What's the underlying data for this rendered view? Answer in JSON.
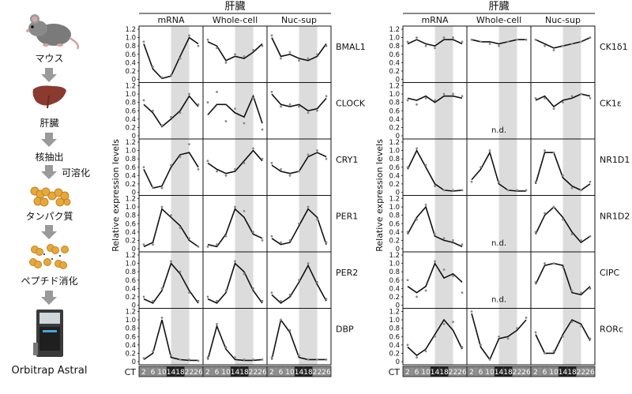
{
  "workflow": {
    "steps": [
      {
        "label": "マウス",
        "icon": "mouse-icon"
      },
      {
        "label": "肝臓",
        "icon": "liver-icon"
      },
      {
        "label": "核抽出",
        "icon": ""
      },
      {
        "label": "可溶化",
        "icon": ""
      },
      {
        "label": "タンパク質",
        "icon": "protein-icon"
      },
      {
        "label": "ペプチド消化",
        "icon": "peptide-icon"
      },
      {
        "label": "Orbitrap Astral",
        "icon": "mass-spectrometer-icon"
      }
    ]
  },
  "colors": {
    "night_shade": "#dcdcdc",
    "line": "#111111",
    "dots": "#888888",
    "ct_dark": "#222222",
    "ct_light": "#8a8a8a"
  },
  "chart_data": [
    {
      "type": "line",
      "panel_group": "left",
      "title": "肝臓",
      "ylabel": "Relative expression levels",
      "ct_label": "CT",
      "x": [
        2,
        6,
        10,
        14,
        18,
        22,
        26
      ],
      "x_tick_labels": [
        "2",
        "6",
        "10",
        "14",
        "18",
        "22",
        "26"
      ],
      "night_range": [
        14,
        22
      ],
      "ylim": [
        0,
        1.2
      ],
      "y_ticks": [
        "0",
        "0.2",
        "0.4",
        "0.6",
        "0.8",
        "1.0",
        "1.2"
      ],
      "columns": [
        "mRNA",
        "Whole-cell",
        "Nuc-sup"
      ],
      "rows": [
        {
          "gene": "BMAL1",
          "panels": [
            {
              "values": [
                0.85,
                0.25,
                0.02,
                0.08,
                0.55,
                1.0,
                0.85
              ],
              "dots": [
                0.9,
                0.3,
                0.05,
                0.1,
                0.5,
                1.05,
                0.8
              ]
            },
            {
              "values": [
                0.9,
                0.8,
                0.45,
                0.55,
                0.5,
                0.65,
                0.85
              ],
              "dots": [
                0.95,
                0.75,
                0.4,
                0.6,
                0.55,
                0.7,
                0.8
              ]
            },
            {
              "values": [
                1.0,
                0.55,
                0.6,
                0.5,
                0.45,
                0.55,
                0.85
              ],
              "dots": [
                1.05,
                0.5,
                0.65,
                0.45,
                0.5,
                0.6,
                0.8
              ]
            }
          ]
        },
        {
          "gene": "CLOCK",
          "panels": [
            {
              "values": [
                0.75,
                0.55,
                0.22,
                0.4,
                0.6,
                0.95,
                0.7
              ],
              "dots": [
                0.85,
                0.6,
                0.25,
                0.45,
                0.55,
                1.0,
                0.75
              ]
            },
            {
              "values": [
                0.5,
                0.75,
                0.75,
                0.55,
                0.45,
                0.95,
                0.3
              ],
              "dots": [
                0.8,
                1.05,
                0.35,
                0.65,
                0.3,
                0.9,
                0.15
              ]
            },
            {
              "values": [
                1.0,
                0.75,
                0.7,
                0.75,
                0.6,
                0.65,
                0.9
              ],
              "dots": [
                1.05,
                0.7,
                0.75,
                0.7,
                0.55,
                0.6,
                0.95
              ]
            }
          ]
        },
        {
          "gene": "CRY1",
          "panels": [
            {
              "values": [
                0.55,
                0.1,
                0.15,
                0.6,
                0.9,
                0.95,
                0.6
              ],
              "dots": [
                0.6,
                0.12,
                0.1,
                0.65,
                0.85,
                1.15,
                0.55
              ]
            },
            {
              "values": [
                0.7,
                0.55,
                0.45,
                0.5,
                0.75,
                1.0,
                0.75
              ],
              "dots": [
                0.75,
                0.5,
                0.4,
                0.55,
                0.7,
                1.05,
                0.8
              ]
            },
            {
              "values": [
                0.65,
                0.5,
                0.45,
                0.5,
                0.85,
                0.95,
                0.85
              ],
              "dots": [
                0.7,
                0.55,
                0.4,
                0.5,
                0.9,
                1.0,
                0.8
              ]
            }
          ]
        },
        {
          "gene": "PER1",
          "panels": [
            {
              "values": [
                0.05,
                0.15,
                0.95,
                0.75,
                0.55,
                0.2,
                0.05
              ],
              "dots": [
                0.1,
                0.1,
                1.0,
                0.8,
                0.5,
                0.25,
                0.05
              ]
            },
            {
              "values": [
                0.1,
                0.05,
                0.35,
                0.95,
                0.75,
                0.35,
                0.25
              ],
              "dots": [
                0.05,
                0.1,
                0.3,
                1.0,
                0.9,
                0.4,
                0.2
              ]
            },
            {
              "values": [
                0.25,
                0.1,
                0.15,
                0.55,
                0.95,
                0.75,
                0.1
              ],
              "dots": [
                0.3,
                0.15,
                0.2,
                0.6,
                1.0,
                0.7,
                0.15
              ]
            }
          ]
        },
        {
          "gene": "PER2",
          "panels": [
            {
              "values": [
                0.15,
                0.05,
                0.35,
                1.0,
                0.75,
                0.35,
                0.05
              ],
              "dots": [
                0.2,
                0.1,
                0.4,
                1.05,
                0.8,
                0.3,
                0.1
              ]
            },
            {
              "values": [
                0.15,
                0.05,
                0.3,
                1.0,
                0.8,
                0.35,
                0.05
              ],
              "dots": [
                0.2,
                0.1,
                0.35,
                1.05,
                0.75,
                0.4,
                0.1
              ]
            },
            {
              "values": [
                0.25,
                0.05,
                0.2,
                0.55,
                0.95,
                0.5,
                0.1
              ],
              "dots": [
                0.3,
                0.1,
                0.25,
                0.6,
                1.0,
                0.55,
                0.15
              ]
            }
          ]
        },
        {
          "gene": "DBP",
          "panels": [
            {
              "values": [
                0.05,
                0.2,
                1.0,
                0.1,
                0.05,
                0.03,
                0.03
              ],
              "dots": [
                0.08,
                0.25,
                1.05,
                0.15,
                0.05,
                0.05,
                0.02
              ]
            },
            {
              "values": [
                0.05,
                0.85,
                0.3,
                0.05,
                0.03,
                0.03,
                0.05
              ],
              "dots": [
                0.1,
                0.9,
                0.35,
                0.1,
                0.05,
                0.05,
                0.05
              ]
            },
            {
              "values": [
                0.05,
                1.0,
                0.7,
                0.1,
                0.05,
                0.05,
                0.05
              ],
              "dots": [
                0.1,
                1.0,
                0.75,
                0.15,
                0.05,
                0.05,
                0.05
              ]
            }
          ]
        }
      ]
    },
    {
      "type": "line",
      "panel_group": "right",
      "title": "肝臓",
      "ylabel": "Relative expression levels",
      "ct_label": "CT",
      "x": [
        2,
        6,
        10,
        14,
        18,
        22,
        26
      ],
      "x_tick_labels": [
        "2",
        "6",
        "10",
        "14",
        "18",
        "22",
        "26"
      ],
      "night_range": [
        14,
        22
      ],
      "ylim": [
        0,
        1.2
      ],
      "y_ticks": [
        "0",
        "0.2",
        "0.4",
        "0.6",
        "0.8",
        "1.0",
        "1.2"
      ],
      "columns": [
        "mRNA",
        "Whole-cell",
        "Nuc-sup"
      ],
      "nd_label": "n.d.",
      "rows": [
        {
          "gene": "CK1δ1",
          "panels": [
            {
              "values": [
                0.85,
                0.95,
                0.85,
                0.8,
                0.95,
                0.95,
                0.85
              ],
              "dots": [
                0.9,
                1.0,
                0.8,
                0.75,
                1.0,
                1.0,
                0.9
              ]
            },
            {
              "values": [
                0.95,
                0.9,
                0.9,
                0.85,
                0.9,
                0.95,
                0.95
              ],
              "dots": [
                0.95,
                0.9,
                0.85,
                0.8,
                0.9,
                0.95,
                0.95
              ]
            },
            {
              "values": [
                0.95,
                0.85,
                0.75,
                0.8,
                0.85,
                0.9,
                1.0
              ],
              "dots": [
                0.95,
                0.8,
                0.7,
                0.8,
                0.85,
                0.9,
                1.0
              ]
            }
          ]
        },
        {
          "gene": "CK1ε",
          "panels": [
            {
              "values": [
                0.9,
                0.85,
                0.95,
                0.8,
                0.95,
                0.95,
                0.9
              ],
              "dots": [
                0.85,
                0.75,
                0.9,
                0.85,
                1.0,
                1.0,
                0.95
              ]
            },
            null,
            {
              "values": [
                0.85,
                0.95,
                0.7,
                0.85,
                0.9,
                1.0,
                0.95
              ],
              "dots": [
                0.9,
                0.9,
                0.65,
                0.8,
                0.95,
                1.0,
                0.9
              ]
            }
          ]
        },
        {
          "gene": "NR1D1",
          "panels": [
            {
              "values": [
                0.55,
                1.0,
                0.6,
                0.2,
                0.05,
                0.03,
                0.05
              ],
              "dots": [
                0.6,
                1.05,
                0.65,
                0.15,
                0.05,
                0.05,
                0.05
              ]
            },
            {
              "values": [
                0.3,
                0.55,
                0.95,
                0.2,
                0.05,
                0.03,
                0.03
              ],
              "dots": [
                0.25,
                0.6,
                1.0,
                0.25,
                0.05,
                0.05,
                0.05
              ]
            },
            {
              "values": [
                0.2,
                0.95,
                0.95,
                0.35,
                0.15,
                0.05,
                0.2
              ],
              "dots": [
                0.25,
                1.0,
                0.95,
                0.4,
                0.1,
                0.05,
                0.25
              ]
            }
          ]
        },
        {
          "gene": "NR1D2",
          "panels": [
            {
              "values": [
                0.35,
                0.75,
                1.0,
                0.3,
                0.2,
                0.15,
                0.05
              ],
              "dots": [
                0.4,
                0.7,
                1.05,
                0.35,
                0.25,
                0.2,
                0.1
              ]
            },
            null,
            {
              "values": [
                0.35,
                0.8,
                1.0,
                0.75,
                0.4,
                0.15,
                0.3
              ],
              "dots": [
                0.4,
                0.85,
                1.0,
                0.7,
                0.35,
                0.2,
                0.3
              ]
            }
          ]
        },
        {
          "gene": "CIPC",
          "panels": [
            {
              "values": [
                0.45,
                0.3,
                0.45,
                1.0,
                0.65,
                0.75,
                0.55
              ],
              "dots": [
                0.6,
                0.2,
                0.35,
                1.05,
                0.85,
                0.7,
                0.3
              ]
            },
            null,
            {
              "values": [
                0.5,
                0.95,
                1.0,
                0.95,
                0.3,
                0.25,
                0.45
              ],
              "dots": [
                0.55,
                1.0,
                1.0,
                0.9,
                0.35,
                0.3,
                0.4
              ]
            }
          ]
        },
        {
          "gene": "RORc",
          "panels": [
            {
              "values": [
                0.35,
                0.15,
                0.3,
                0.65,
                1.0,
                0.75,
                0.3
              ],
              "dots": [
                0.4,
                0.1,
                0.25,
                0.6,
                0.9,
                0.95,
                0.35
              ]
            },
            {
              "values": [
                1.15,
                0.35,
                0.05,
                0.55,
                0.6,
                0.75,
                1.0
              ],
              "dots": [
                1.2,
                0.4,
                0.05,
                0.6,
                0.55,
                0.8,
                1.05
              ]
            },
            {
              "values": [
                0.65,
                0.2,
                0.2,
                0.65,
                1.0,
                0.9,
                0.5
              ],
              "dots": [
                0.7,
                0.2,
                0.25,
                0.6,
                0.95,
                0.85,
                0.55
              ]
            }
          ]
        }
      ]
    }
  ]
}
